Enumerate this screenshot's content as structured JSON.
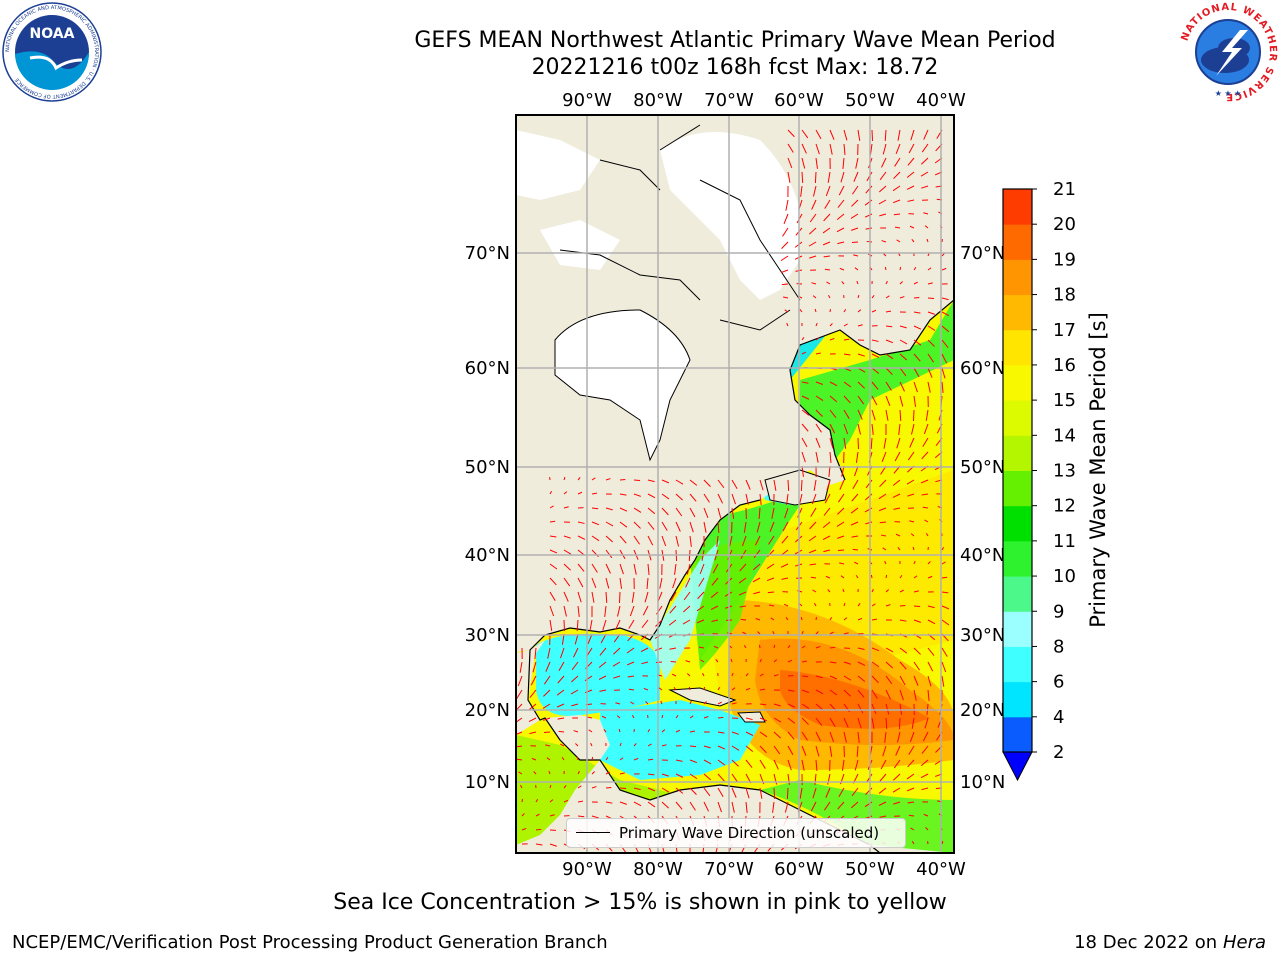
{
  "header": {
    "title_line1": "GEFS MEAN Northwest Atlantic Primary Wave Mean Period",
    "title_line2": "20221216 t00z 168h fcst   Max: 18.72"
  },
  "logos": {
    "left": "NOAA",
    "left_ring_text": "NATIONAL OCEANIC AND ATMOSPHERIC ADMINISTRATION · U.S. DEPARTMENT OF COMMERCE",
    "right_ring_text": "NATIONAL WEATHER SERVICE"
  },
  "map": {
    "lon_labels": [
      "90°W",
      "80°W",
      "70°W",
      "60°W",
      "50°W",
      "40°W"
    ],
    "lat_labels": [
      "70°N",
      "60°N",
      "50°N",
      "40°N",
      "30°N",
      "20°N",
      "10°N"
    ],
    "legend_label": "Primary Wave Direction (unscaled)",
    "land_color": "#efecdc",
    "vector_color": "#ff0000"
  },
  "colorbar": {
    "label": "Primary Wave Mean Period [s]",
    "ticks": [
      "2",
      "4",
      "6",
      "8",
      "9",
      "10",
      "11",
      "12",
      "13",
      "14",
      "15",
      "16",
      "17",
      "18",
      "19",
      "20",
      "21"
    ],
    "colors": [
      "#0a5cff",
      "#00e5ff",
      "#40ffff",
      "#9bffff",
      "#4cf88a",
      "#2ef22e",
      "#00e000",
      "#64f000",
      "#b4f500",
      "#dcfa00",
      "#f8f800",
      "#ffe500",
      "#ffb900",
      "#ff9500",
      "#ff6a00",
      "#ff3c00",
      "#ff0000"
    ],
    "extend_color": "#0000ff"
  },
  "note": "Sea Ice Concentration > 15% is shown in pink to yellow",
  "footer": {
    "left": "NCEP/EMC/Verification Post Processing Product Generation Branch",
    "right_date": "18 Dec 2022 on",
    "right_host": "Hera"
  }
}
